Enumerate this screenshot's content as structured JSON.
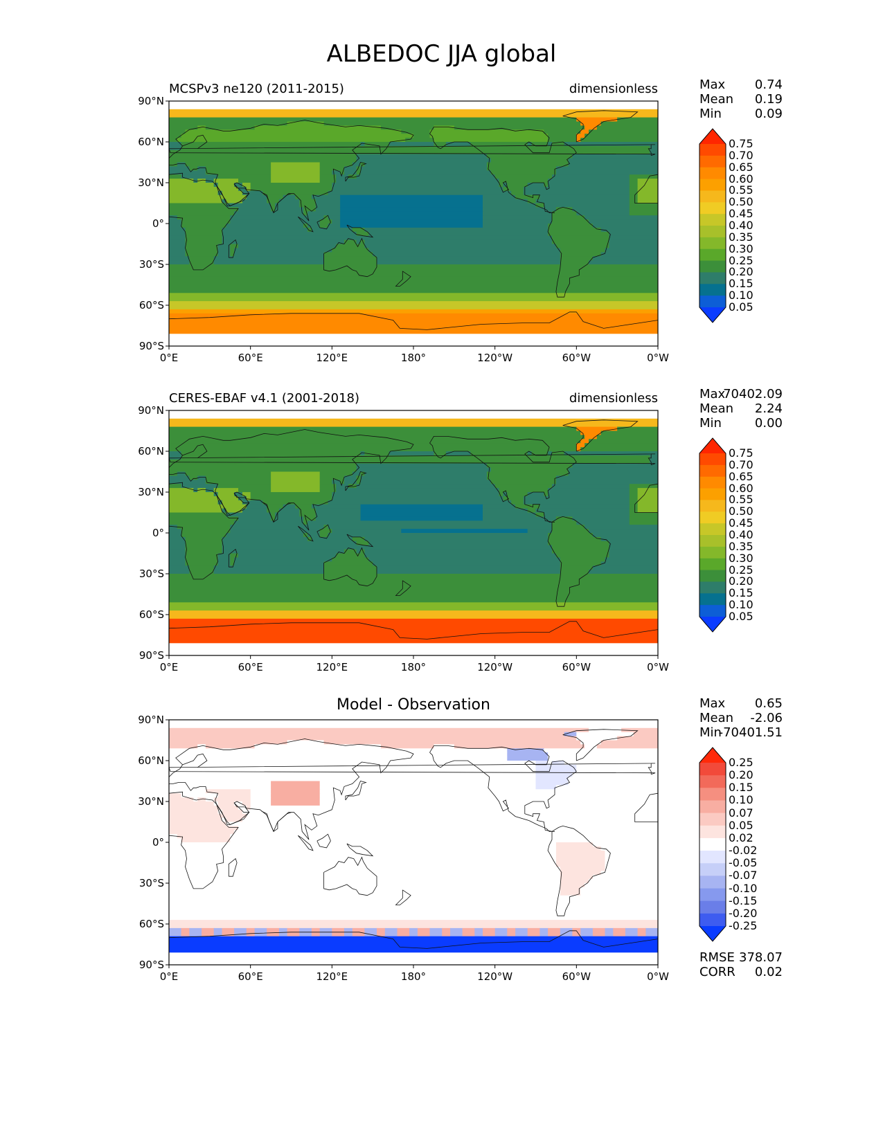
{
  "figure": {
    "title": "ALBEDOC JJA global"
  },
  "axes": {
    "lat_ticks": [
      "90°N",
      "60°N",
      "30°N",
      "0°",
      "30°S",
      "60°S",
      "90°S"
    ],
    "lon_ticks": [
      "0°E",
      "60°E",
      "120°E",
      "180°",
      "120°W",
      "60°W",
      "0°W"
    ]
  },
  "panels": [
    {
      "left_title": "MCSPv3 ne120 (2011-2015)",
      "right_title": "dimensionless",
      "center_title": "",
      "stats": [
        {
          "label": "Max",
          "value": "0.74"
        },
        {
          "label": "Mean",
          "value": "0.19"
        },
        {
          "label": "Min",
          "value": "0.09"
        }
      ],
      "colorbar": {
        "levels": [
          "0.75",
          "0.70",
          "0.65",
          "0.60",
          "0.55",
          "0.50",
          "0.45",
          "0.40",
          "0.35",
          "0.30",
          "0.25",
          "0.20",
          "0.15",
          "0.10",
          "0.05"
        ],
        "colors": [
          "#ff2600",
          "#ff4a00",
          "#ff6a00",
          "#ff8a00",
          "#fca000",
          "#f6b81c",
          "#f0cc24",
          "#c7c728",
          "#a8c02a",
          "#84b82a",
          "#5aa82a",
          "#3c8f3a",
          "#2e7d6a",
          "#06718f",
          "#0d5ed6",
          "#0a3cff"
        ]
      },
      "field": "model"
    },
    {
      "left_title": "CERES-EBAF v4.1 (2001-2018)",
      "right_title": "dimensionless",
      "center_title": "",
      "stats": [
        {
          "label": "Max",
          "value": "70402.09"
        },
        {
          "label": "Mean",
          "value": "2.24"
        },
        {
          "label": "Min",
          "value": "0.00"
        }
      ],
      "colorbar": {
        "levels": [
          "0.75",
          "0.70",
          "0.65",
          "0.60",
          "0.55",
          "0.50",
          "0.45",
          "0.40",
          "0.35",
          "0.30",
          "0.25",
          "0.20",
          "0.15",
          "0.10",
          "0.05"
        ],
        "colors": [
          "#ff2600",
          "#ff4a00",
          "#ff6a00",
          "#ff8a00",
          "#fca000",
          "#f6b81c",
          "#f0cc24",
          "#c7c728",
          "#a8c02a",
          "#84b82a",
          "#5aa82a",
          "#3c8f3a",
          "#2e7d6a",
          "#06718f",
          "#0d5ed6",
          "#0a3cff"
        ]
      },
      "field": "obs"
    },
    {
      "left_title": "",
      "right_title": "",
      "center_title": "Model - Observation",
      "stats": [
        {
          "label": "Max",
          "value": "0.65"
        },
        {
          "label": "Mean",
          "value": "-2.06"
        },
        {
          "label": "Min",
          "value": "-70401.51"
        }
      ],
      "extra_stats": [
        {
          "label": "RMSE",
          "value": "378.07"
        },
        {
          "label": "CORR",
          "value": "0.02"
        }
      ],
      "colorbar": {
        "levels": [
          "0.25",
          "0.20",
          "0.15",
          "0.10",
          "0.07",
          "0.05",
          "0.02",
          "-0.02",
          "-0.05",
          "-0.07",
          "-0.10",
          "-0.15",
          "-0.20",
          "-0.25"
        ],
        "colors": [
          "#ff2a0a",
          "#f24a3a",
          "#f26a5a",
          "#f58f80",
          "#f8aea2",
          "#fbcac2",
          "#fde4df",
          "#ffffff",
          "#e2e6ff",
          "#c6cff8",
          "#a7b4f2",
          "#8699ee",
          "#6a7ee8",
          "#3e5cf0",
          "#0a3cff"
        ]
      },
      "field": "diff"
    }
  ]
}
